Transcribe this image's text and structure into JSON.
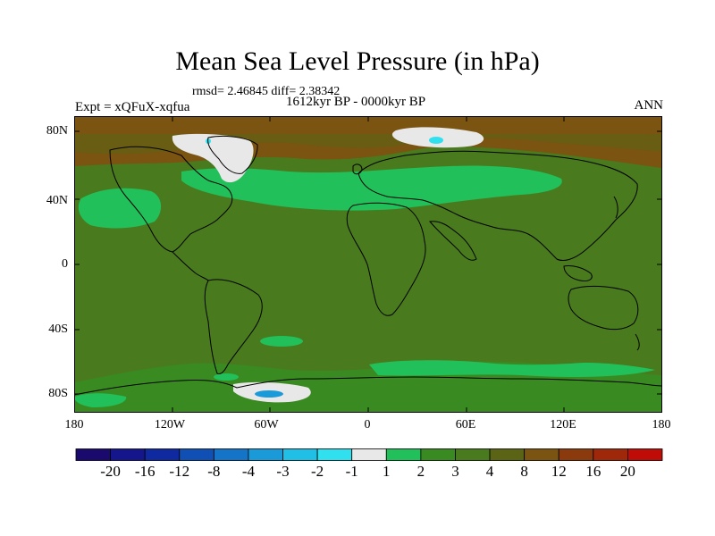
{
  "title": "Mean Sea Level Pressure (in hPa)",
  "stats": "rmsd= 2.46845  diff= 2.38342",
  "period": "1612kyr BP - 0000kyr BP",
  "experiment": "Expt = xQFuX-xqfua",
  "season": "ANN",
  "lat_labels": [
    "80N",
    "40N",
    "0",
    "40S",
    "80S"
  ],
  "lon_labels": [
    "180",
    "120W",
    "60W",
    "0",
    "60E",
    "120E",
    "180"
  ],
  "colorbar": {
    "colors": [
      "#1a0a6e",
      "#16168c",
      "#0f2aa0",
      "#1050b4",
      "#1474c8",
      "#1a9ad8",
      "#20c0e6",
      "#30e0ee",
      "#e8e8e8",
      "#22c05a",
      "#3a8a22",
      "#4a7a1e",
      "#5a6414",
      "#7a5410",
      "#8a3a0c",
      "#a0280a",
      "#c00c06"
    ],
    "labels": [
      "-20",
      "-16",
      "-12",
      "-8",
      "-4",
      "-3",
      "-2",
      "-1",
      "1",
      "2",
      "3",
      "4",
      "8",
      "12",
      "16",
      "20"
    ]
  },
  "palette": {
    "base": "#4a7a1e",
    "dark": "#5a6414",
    "brown": "#7a5410",
    "light_green": "#22c05a",
    "mid_green": "#3a8a22",
    "white": "#e8e8e8",
    "cyan": "#30e0ee",
    "blue": "#1a9ad8"
  }
}
